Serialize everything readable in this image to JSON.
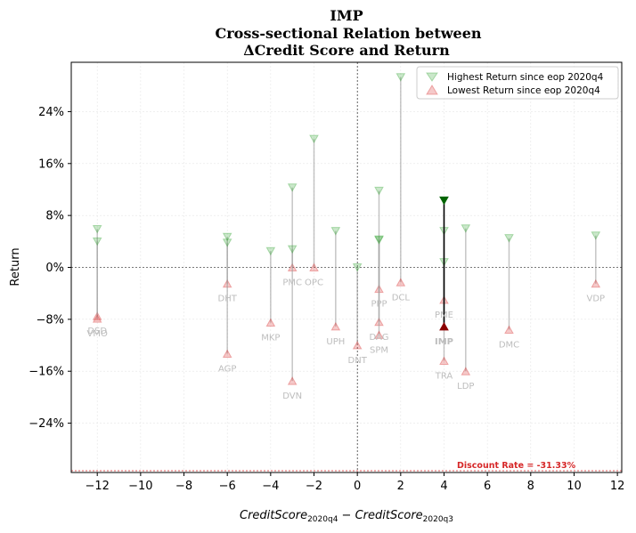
{
  "chart_data": {
    "type": "scatter",
    "title": [
      "IMP",
      "Cross-sectional Relation between",
      "ΔCredit Score and Return"
    ],
    "xlabel": "CreditScore_2020q4 − CreditScore_2020q3",
    "ylabel": "Return",
    "xlim": [
      -13.2,
      12.2
    ],
    "ylim": [
      -31.6,
      31.6
    ],
    "xticks": [
      -12,
      -10,
      -8,
      -6,
      -4,
      -2,
      0,
      2,
      4,
      6,
      8,
      10,
      12
    ],
    "xtick_labels": [
      "−12",
      "−10",
      "−8",
      "−6",
      "−4",
      "−2",
      "0",
      "2",
      "4",
      "6",
      "8",
      "10",
      "12"
    ],
    "yticks": [
      -24,
      -16,
      -8,
      0,
      8,
      16,
      24
    ],
    "ytick_labels": [
      "−24%",
      "−16%",
      "−8%",
      "0%",
      "8%",
      "16%",
      "24%"
    ],
    "grid": true,
    "legend_position": "top-right",
    "legend": [
      {
        "label": "Highest Return since eop 2020q4",
        "marker": "down-triangle",
        "color": "#2ca02c"
      },
      {
        "label": "Lowest Return since eop 2020q4",
        "marker": "up-triangle",
        "color": "#d62728"
      }
    ],
    "discount_rate": {
      "value": -31.33,
      "label": "Discount Rate = -31.33%",
      "color": "#d62728"
    },
    "highlight": "IMP",
    "stocks": [
      {
        "name": "DSD",
        "x": -12,
        "high": 5.9,
        "low": -7.5
      },
      {
        "name": "VMO",
        "x": -12,
        "high": 4.0,
        "low": -7.9
      },
      {
        "name": "DHT",
        "x": -6,
        "high": 4.7,
        "low": -2.5
      },
      {
        "name": "AGP",
        "x": -6,
        "high": 3.8,
        "low": -13.3
      },
      {
        "name": "MKP",
        "x": -4,
        "high": 2.5,
        "low": -8.5
      },
      {
        "name": "PMC",
        "x": -3,
        "high": 12.3,
        "low": 0.0
      },
      {
        "name": "DVN",
        "x": -3,
        "high": 2.8,
        "low": -17.5
      },
      {
        "name": "OPC",
        "x": -2,
        "high": 19.8,
        "low": 0.0
      },
      {
        "name": "UPH",
        "x": -1,
        "high": 5.6,
        "low": -9.1
      },
      {
        "name": "DNT",
        "x": 0,
        "high": 0.0,
        "low": -12.0
      },
      {
        "name": "PPP",
        "x": 1,
        "high": 11.8,
        "low": -3.3
      },
      {
        "name": "DAG",
        "x": 1,
        "high": 4.3,
        "low": -8.4
      },
      {
        "name": "SPM",
        "x": 1,
        "high": 4.2,
        "low": -10.4
      },
      {
        "name": "DCL",
        "x": 2,
        "high": 29.3,
        "low": -2.3
      },
      {
        "name": "PME",
        "x": 4,
        "high": 5.6,
        "low": -5.0
      },
      {
        "name": "TRA",
        "x": 4,
        "high": 0.8,
        "low": -14.4
      },
      {
        "name": "IMP",
        "x": 4,
        "high": 10.3,
        "low": -9.1
      },
      {
        "name": "LDP",
        "x": 5,
        "high": 6.0,
        "low": -16.0
      },
      {
        "name": "DMC",
        "x": 7,
        "high": 4.5,
        "low": -9.6
      },
      {
        "name": "VDP",
        "x": 11,
        "high": 4.9,
        "low": -2.5
      }
    ]
  }
}
